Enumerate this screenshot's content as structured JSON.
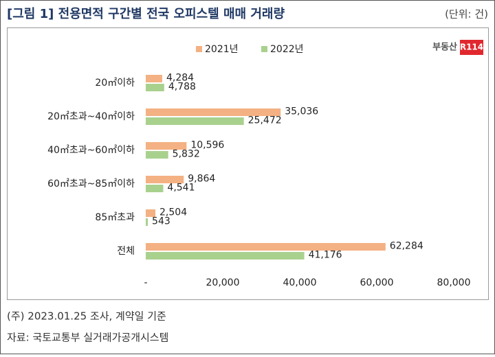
{
  "chart_data": {
    "type": "hbar",
    "title": "[그림 1] 전용면적 구간별 전국 오피스텔 매매 거래량",
    "unit": "(단위: 건)",
    "logo": [
      "부동산",
      "R114"
    ],
    "categories": [
      "20㎡이하",
      "20㎡초과~40㎡이하",
      "40㎡초과~60㎡이하",
      "60㎡초과~85㎡이하",
      "85㎡초과",
      "전체"
    ],
    "series": [
      {
        "name": "2021년",
        "color": "#f4b183",
        "values": [
          4284,
          35036,
          10596,
          9864,
          2504,
          62284
        ],
        "value_labels": [
          "4,284",
          "35,036",
          "10,596",
          "9,864",
          "2,504",
          "62,284"
        ]
      },
      {
        "name": "2022년",
        "color": "#a9d18e",
        "values": [
          4788,
          25472,
          5832,
          4541,
          543,
          41176
        ],
        "value_labels": [
          "4,788",
          "25,472",
          "5,832",
          "4,541",
          "543",
          "41,176"
        ]
      }
    ],
    "xlim": [
      0,
      80000
    ],
    "xticks": [
      {
        "value": 0,
        "label": "-"
      },
      {
        "value": 20000,
        "label": "20,000"
      },
      {
        "value": 40000,
        "label": "40,000"
      },
      {
        "value": 60000,
        "label": "60,000"
      },
      {
        "value": 80000,
        "label": "80,000"
      }
    ],
    "notes": [
      "(주) 2023.01.25 조사, 계약일 기준",
      "자료: 국토교통부 실거래가공개시스템"
    ]
  }
}
